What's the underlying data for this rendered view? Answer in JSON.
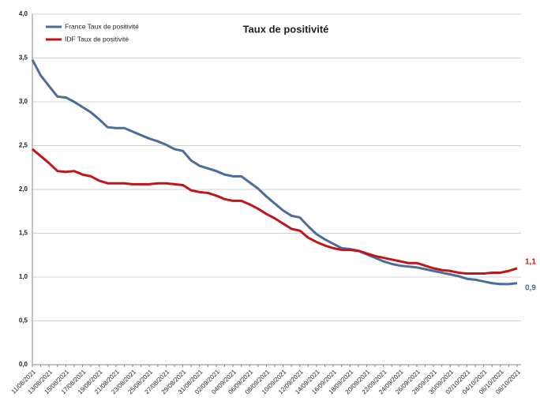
{
  "chart_data": {
    "type": "line",
    "title": "Taux de positivité",
    "categories": [
      "11/08/2021",
      null,
      "13/08/2021",
      null,
      "15/08/2021",
      null,
      "17/08/2021",
      null,
      "19/08/2021",
      null,
      "21/08/2021",
      null,
      "23/08/2021",
      null,
      "25/08/2021",
      null,
      "27/08/2021",
      null,
      "29/08/2021",
      null,
      "31/08/2021",
      null,
      "02/09/2021",
      null,
      "04/09/2021",
      null,
      "06/09/2021",
      null,
      "08/09/2021",
      null,
      "10/09/2021",
      null,
      "12/09/2021",
      null,
      "14/09/2021",
      null,
      "16/09/2021",
      null,
      "18/09/2021",
      null,
      "20/09/2021",
      null,
      "22/09/2021",
      null,
      "24/09/2021",
      null,
      "26/09/2021",
      null,
      "28/09/2021",
      null,
      "30/09/2021",
      null,
      "02/10/2021",
      null,
      "04/10/2021",
      null,
      "06/10/2021",
      null,
      "08/10/2021"
    ],
    "series": [
      {
        "name": "France Taux de positivité",
        "color": "#4a6d9c",
        "end_label": "0,9",
        "values": [
          3.48,
          3.3,
          3.18,
          3.06,
          3.05,
          3.0,
          2.94,
          2.88,
          2.8,
          2.71,
          2.7,
          2.7,
          2.66,
          2.62,
          2.58,
          2.55,
          2.51,
          2.46,
          2.44,
          2.33,
          2.27,
          2.24,
          2.21,
          2.17,
          2.15,
          2.15,
          2.08,
          2.01,
          1.92,
          1.84,
          1.76,
          1.7,
          1.68,
          1.58,
          1.49,
          1.43,
          1.38,
          1.33,
          1.32,
          1.3,
          1.26,
          1.22,
          1.18,
          1.15,
          1.13,
          1.12,
          1.11,
          1.09,
          1.07,
          1.05,
          1.03,
          1.01,
          0.98,
          0.97,
          0.95,
          0.93,
          0.92,
          0.92,
          0.93
        ]
      },
      {
        "name": "IDF Taux de positivité",
        "color": "#c0161b",
        "end_label": "1,1",
        "values": [
          2.46,
          2.38,
          2.3,
          2.21,
          2.2,
          2.21,
          2.17,
          2.15,
          2.1,
          2.07,
          2.07,
          2.07,
          2.06,
          2.06,
          2.06,
          2.07,
          2.07,
          2.06,
          2.05,
          1.99,
          1.97,
          1.96,
          1.93,
          1.89,
          1.87,
          1.87,
          1.83,
          1.78,
          1.72,
          1.67,
          1.61,
          1.55,
          1.53,
          1.45,
          1.4,
          1.36,
          1.33,
          1.31,
          1.31,
          1.3,
          1.27,
          1.24,
          1.22,
          1.2,
          1.18,
          1.16,
          1.16,
          1.13,
          1.1,
          1.08,
          1.07,
          1.05,
          1.04,
          1.04,
          1.04,
          1.05,
          1.05,
          1.07,
          1.1
        ]
      }
    ],
    "ylim": [
      0,
      4
    ],
    "yticks": [
      {
        "value": 0,
        "label": "0,0"
      },
      {
        "value": 0.5,
        "label": "0,5"
      },
      {
        "value": 1,
        "label": "1,0"
      },
      {
        "value": 1.5,
        "label": "1,5"
      },
      {
        "value": 2,
        "label": "2,0"
      },
      {
        "value": 2.5,
        "label": "2,5"
      },
      {
        "value": 3,
        "label": "3,0"
      },
      {
        "value": 3.5,
        "label": "3,5"
      },
      {
        "value": 4,
        "label": "4,0"
      }
    ],
    "grid": true,
    "legend": "top-left"
  }
}
